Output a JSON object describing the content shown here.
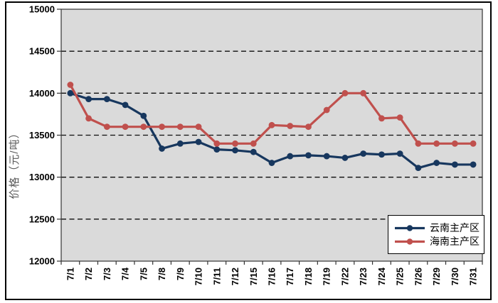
{
  "chart_data": {
    "type": "line",
    "title": "",
    "xlabel": "",
    "ylabel": "价格（元/吨）",
    "ylim": [
      12000,
      15000
    ],
    "y_tick_interval": 500,
    "y_ticks": [
      15000,
      14500,
      14000,
      13500,
      13000,
      12500,
      12000
    ],
    "grid": "horizontal-dashed",
    "plot_background": "#DADADA",
    "legend_position": "inside-bottom-right",
    "marker": "circle",
    "categories": [
      "7/1",
      "7/2",
      "7/3",
      "7/4",
      "7/5",
      "7/8",
      "7/9",
      "7/10",
      "7/11",
      "7/12",
      "7/15",
      "7/16",
      "7/17",
      "7/18",
      "7/19",
      "7/22",
      "7/23",
      "7/24",
      "7/25",
      "7/26",
      "7/29",
      "7/30",
      "7/31"
    ],
    "series": [
      {
        "name": "云南主产区",
        "color": "#17375E",
        "values": [
          14000,
          13930,
          13930,
          13860,
          13730,
          13340,
          13400,
          13420,
          13330,
          13320,
          13300,
          13170,
          13250,
          13260,
          13250,
          13230,
          13280,
          13270,
          13280,
          13110,
          13170,
          13150,
          13150
        ]
      },
      {
        "name": "海南主产区",
        "color": "#C0504D",
        "values": [
          14100,
          13700,
          13600,
          13600,
          13600,
          13600,
          13600,
          13600,
          13400,
          13400,
          13400,
          13620,
          13610,
          13600,
          13800,
          14000,
          14000,
          13700,
          13710,
          13400,
          13400,
          13400,
          13400
        ]
      }
    ]
  }
}
